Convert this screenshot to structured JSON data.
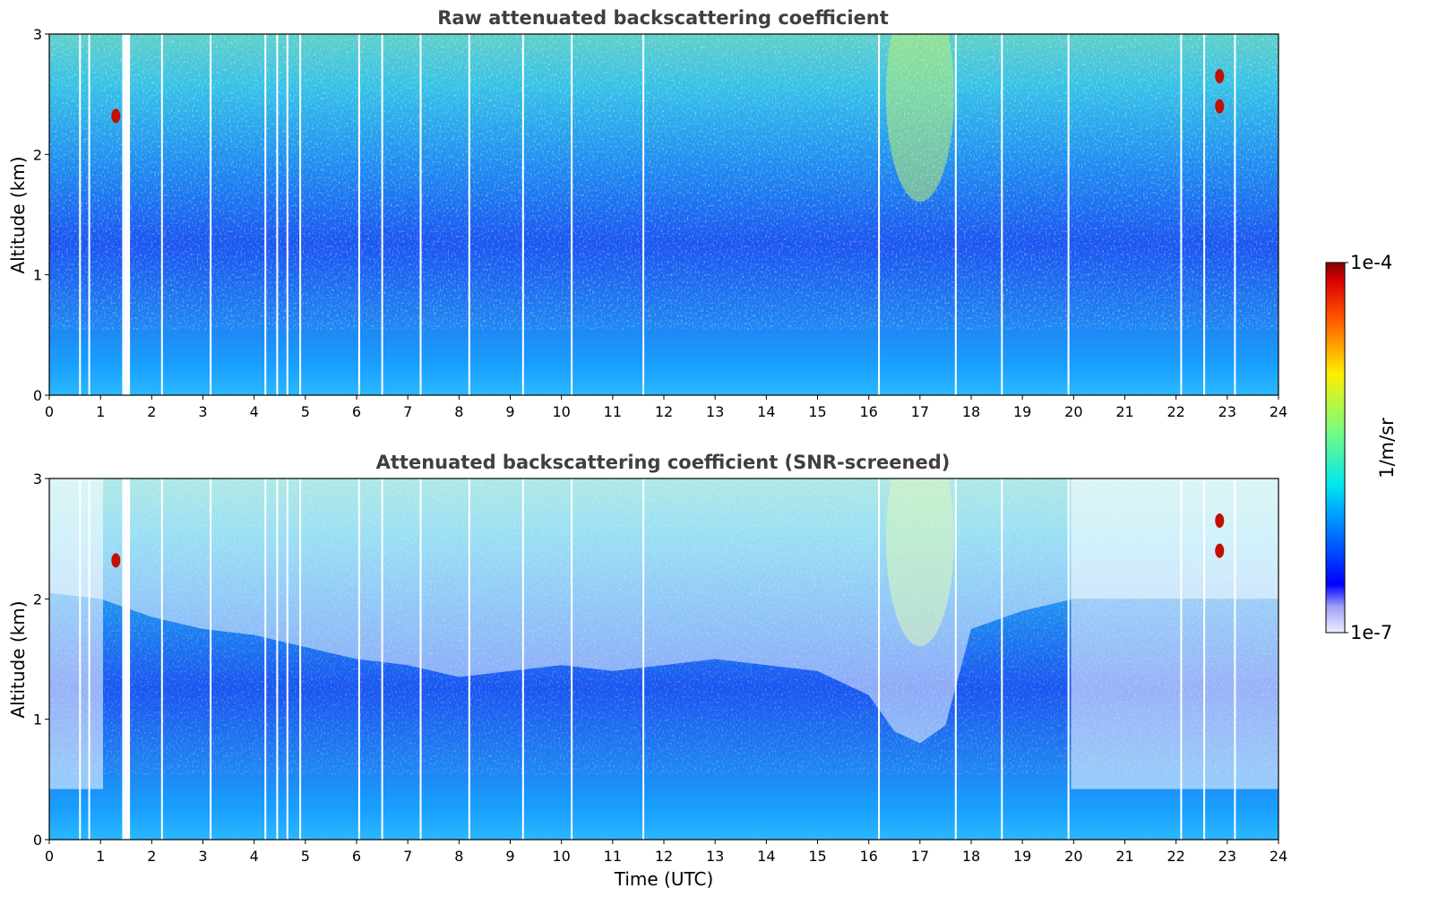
{
  "chart_data": {
    "type": "heatmap",
    "panels": [
      {
        "title": "Raw attenuated backscattering coefficient",
        "xlabel": "",
        "ylabel": "Altitude (km)",
        "xlim": [
          0,
          24
        ],
        "ylim": [
          0,
          3
        ],
        "xticks": [
          "0",
          "1",
          "2",
          "3",
          "4",
          "5",
          "6",
          "7",
          "8",
          "9",
          "10",
          "11",
          "12",
          "13",
          "14",
          "15",
          "16",
          "17",
          "18",
          "19",
          "20",
          "21",
          "22",
          "23",
          "24"
        ],
        "yticks": [
          "0",
          "1",
          "2",
          "3"
        ],
        "snr_screened": false,
        "gap_times": [
          0.6,
          0.78,
          1.45,
          1.5,
          1.55,
          2.2,
          3.15,
          4.22,
          4.45,
          4.65,
          4.9,
          6.05,
          6.5,
          7.25,
          8.2,
          9.25,
          10.2,
          11.6,
          16.2,
          17.7,
          18.6,
          19.9,
          22.1,
          22.55,
          23.15
        ],
        "features": [
          {
            "time": 1.3,
            "altitude_km": 2.32,
            "value": "1e-4"
          },
          {
            "time": 22.85,
            "altitude_km": 2.65,
            "value": "1e-4"
          },
          {
            "time": 22.85,
            "altitude_km": 2.4,
            "value": "1e-4"
          }
        ]
      },
      {
        "title": "Attenuated backscattering coefficient (SNR-screened)",
        "xlabel": "Time (UTC)",
        "ylabel": "Altitude (km)",
        "xlim": [
          0,
          24
        ],
        "ylim": [
          0,
          3
        ],
        "xticks": [
          "0",
          "1",
          "2",
          "3",
          "4",
          "5",
          "6",
          "7",
          "8",
          "9",
          "10",
          "11",
          "12",
          "13",
          "14",
          "15",
          "16",
          "17",
          "18",
          "19",
          "20",
          "21",
          "22",
          "23",
          "24"
        ],
        "yticks": [
          "0",
          "1",
          "2",
          "3"
        ],
        "snr_screened": true,
        "gap_times": [
          0.6,
          0.78,
          1.45,
          1.5,
          1.55,
          2.2,
          3.15,
          4.22,
          4.45,
          4.65,
          4.9,
          6.05,
          6.5,
          7.25,
          8.2,
          9.25,
          10.2,
          11.6,
          16.2,
          17.7,
          18.6,
          19.9,
          22.1,
          22.55,
          23.15
        ],
        "features": [
          {
            "time": 1.3,
            "altitude_km": 2.32,
            "value": "1e-4"
          },
          {
            "time": 22.85,
            "altitude_km": 2.65,
            "value": "1e-4"
          },
          {
            "time": 22.85,
            "altitude_km": 2.4,
            "value": "1e-4"
          }
        ]
      }
    ],
    "colorbar": {
      "label": "1/m/sr",
      "min_label": "1e-7",
      "max_label": "1e-4",
      "scale": "log",
      "colormap": "jet"
    }
  }
}
